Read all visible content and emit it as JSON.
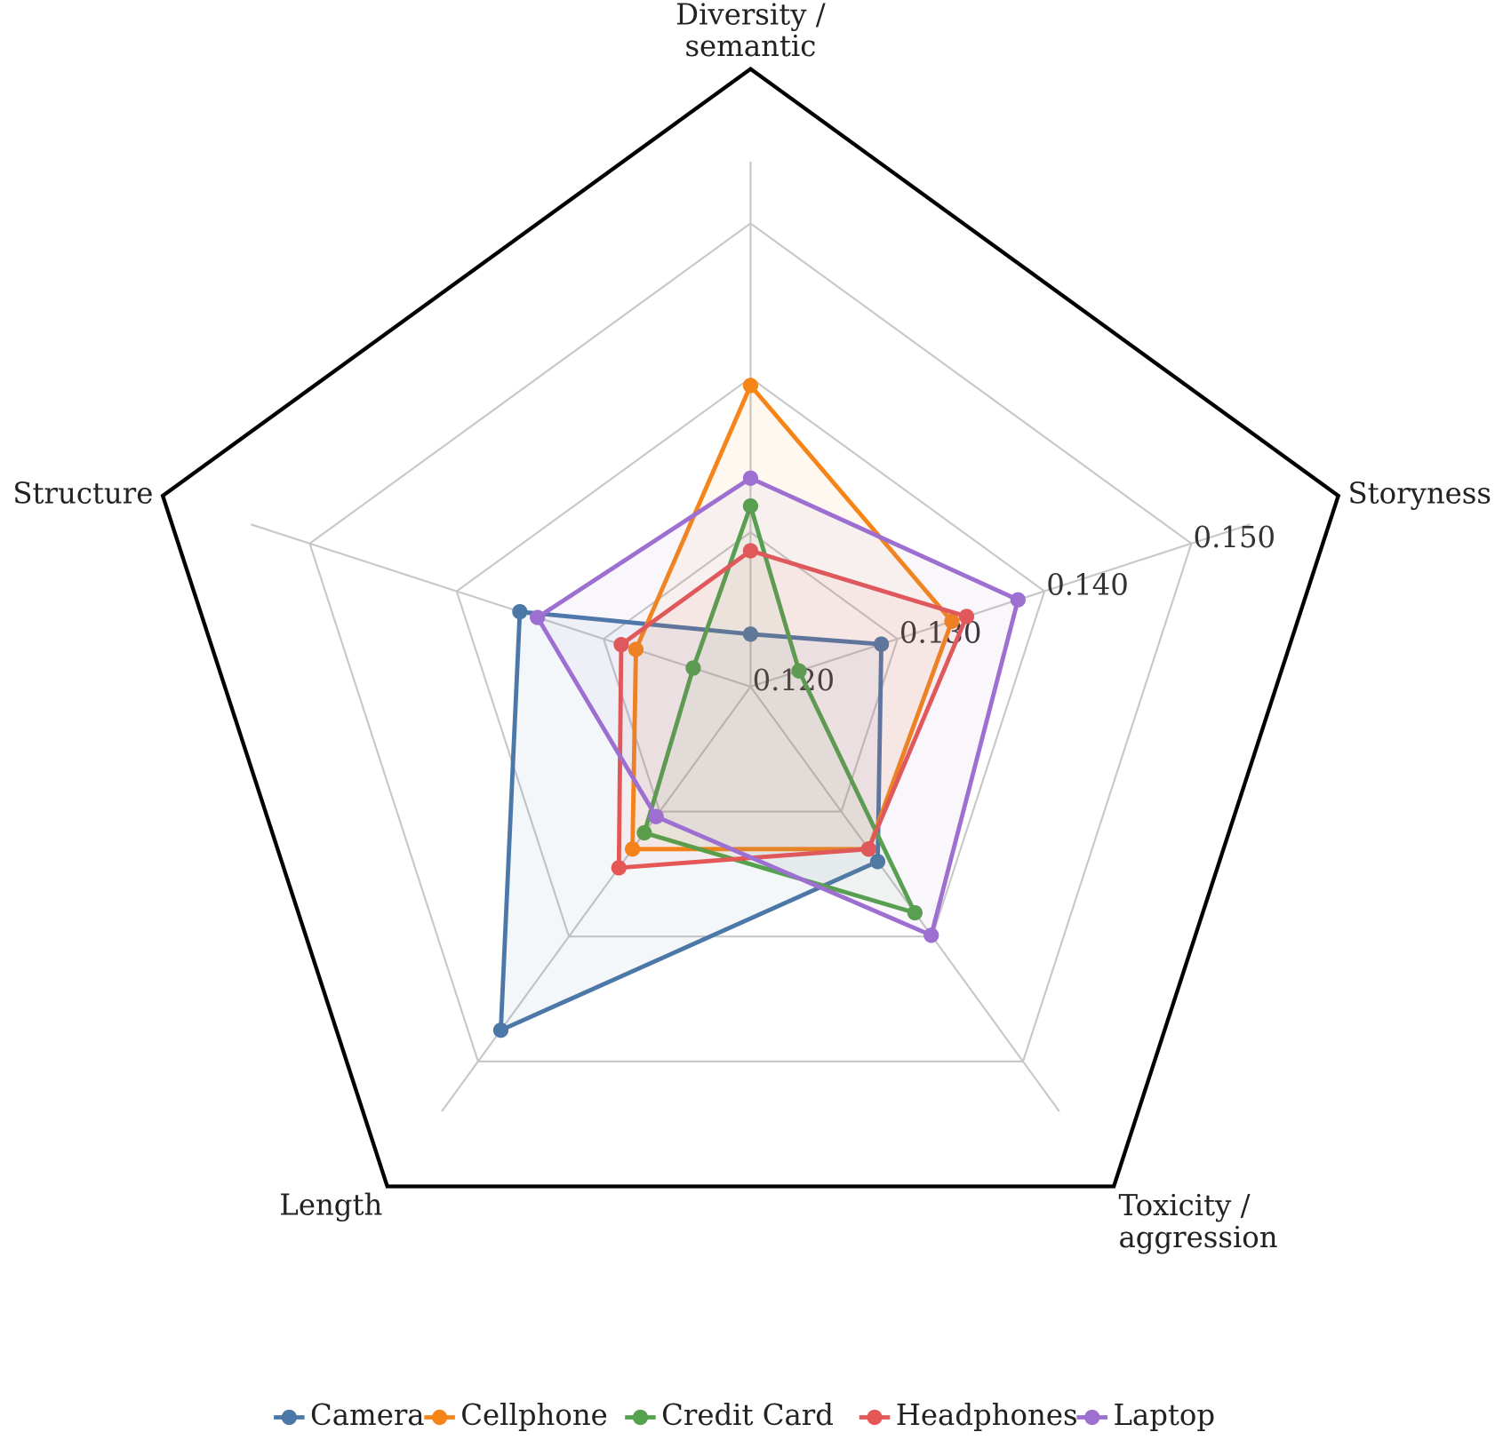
{
  "chart_data": {
    "type": "radar",
    "categories": [
      "Diversity /\nsemantic",
      "Storyness",
      "Toxicity /\naggression",
      "Length",
      "Structure"
    ],
    "ylim": [
      0.12,
      0.16
    ],
    "yticks": [
      {
        "value": 0.12,
        "label": "0.120"
      },
      {
        "value": 0.13,
        "label": "0.130"
      },
      {
        "value": 0.14,
        "label": "0.140"
      },
      {
        "value": 0.15,
        "label": "0.150"
      }
    ],
    "grid": true,
    "legend": "bottom",
    "series": [
      {
        "name": "Camera",
        "color": "#4c78a8",
        "values": [
          0.1234,
          0.1289,
          0.134,
          0.1475,
          0.1357
        ]
      },
      {
        "name": "Cellphone",
        "color": "#f58518",
        "values": [
          0.1395,
          0.1337,
          0.133,
          0.133,
          0.1278
        ]
      },
      {
        "name": "Credit Card",
        "color": "#54a24b",
        "values": [
          0.1317,
          0.1233,
          0.1381,
          0.1317,
          0.1239
        ]
      },
      {
        "name": "Headphones",
        "color": "#e45756",
        "values": [
          0.1288,
          0.1347,
          0.133,
          0.1345,
          0.1288
        ]
      },
      {
        "name": "Laptop",
        "color": "#9d6fd0",
        "values": [
          0.1335,
          0.1382,
          0.1399,
          0.1304,
          0.1345
        ]
      }
    ]
  }
}
